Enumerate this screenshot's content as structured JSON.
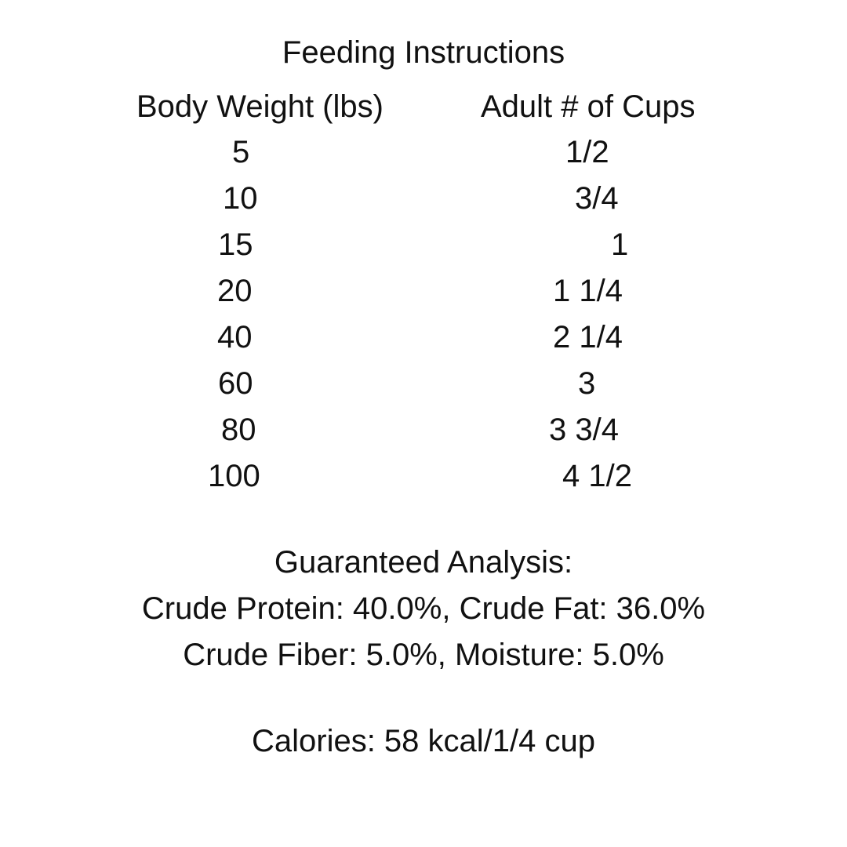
{
  "title": "Feeding Instructions",
  "table": {
    "headers": [
      "Body Weight (lbs)",
      "Adult # of Cups"
    ],
    "rows": [
      {
        "weight": "5",
        "cups": "1/2"
      },
      {
        "weight": "10",
        "cups": "3/4"
      },
      {
        "weight": "15",
        "cups": "1"
      },
      {
        "weight": "20",
        "cups": "1 1/4"
      },
      {
        "weight": "40",
        "cups": "2 1/4"
      },
      {
        "weight": "60",
        "cups": "3"
      },
      {
        "weight": "80",
        "cups": "3 3/4"
      },
      {
        "weight": "100",
        "cups": "4 1/2"
      }
    ]
  },
  "analysis": {
    "heading": "Guaranteed Analysis:",
    "line1": "Crude Protein: 40.0%, Crude Fat: 36.0%",
    "line2": "Crude Fiber: 5.0%, Moisture: 5.0%"
  },
  "calories": "Calories: 58 kcal/1/4 cup"
}
